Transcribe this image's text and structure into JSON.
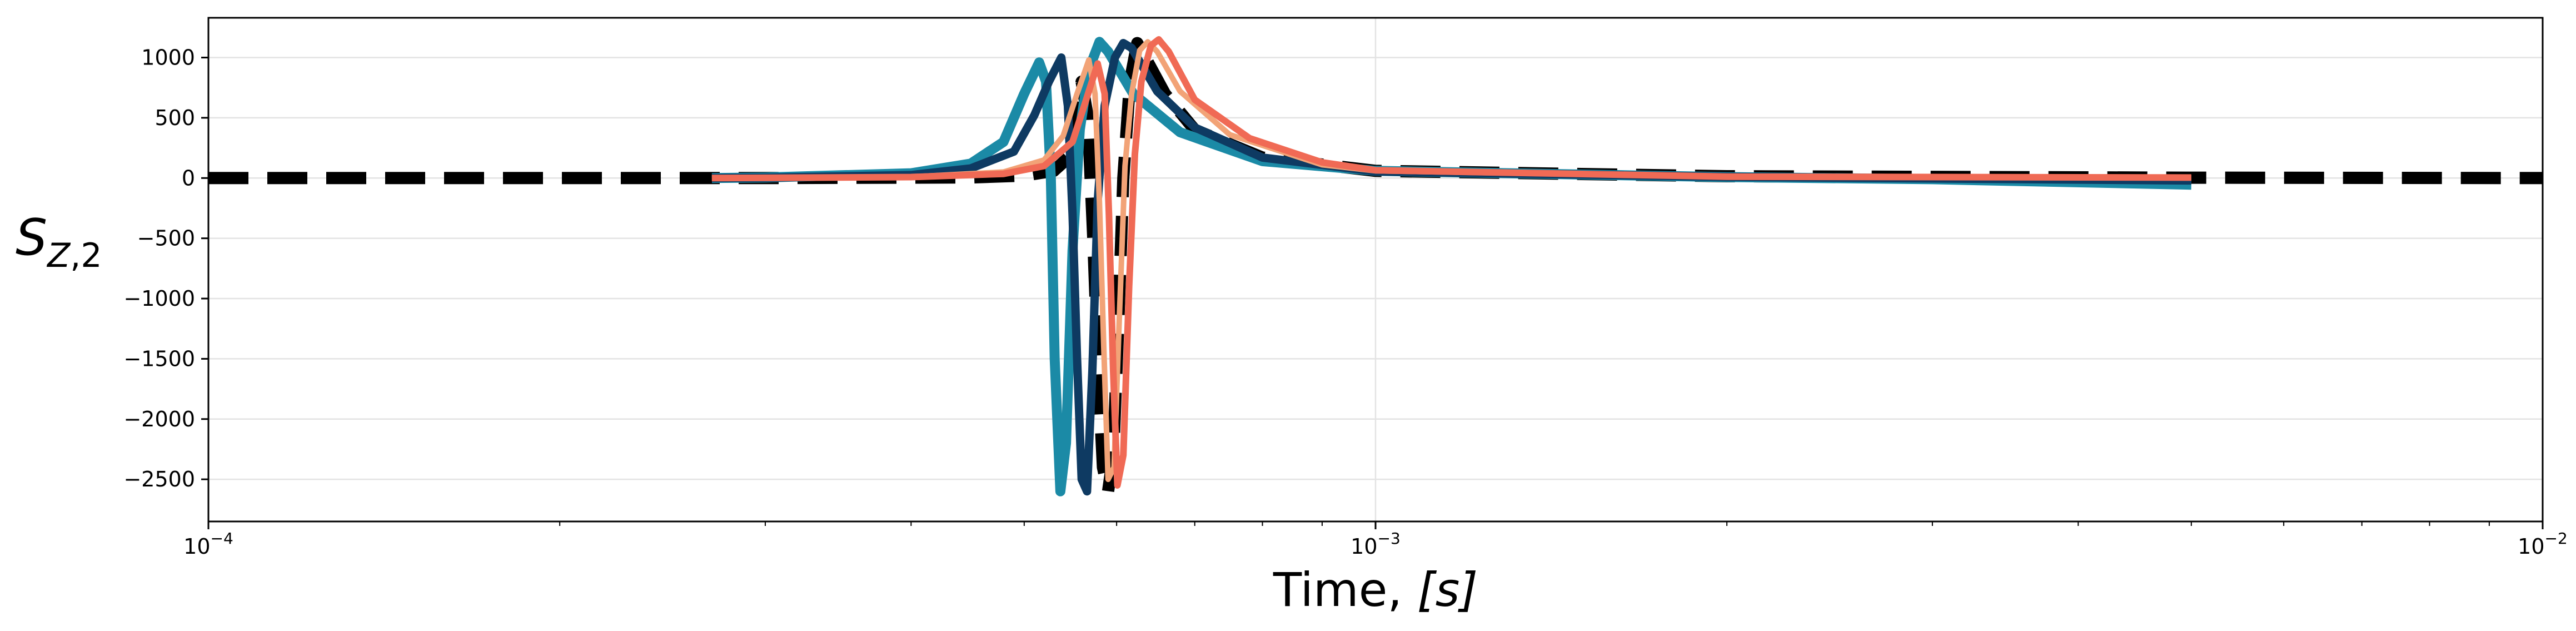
{
  "chart_data": {
    "type": "line",
    "title": "",
    "xlabel": "Time, ",
    "xlabel_unit": "[s]",
    "ylabel_main": "S",
    "ylabel_sub_letter": "Z",
    "ylabel_sub_num": ",2",
    "x_scale": "log",
    "xlim": [
      0.0001,
      0.01
    ],
    "ylim": [
      -2850,
      1330
    ],
    "x_ticks": [
      {
        "value": 0.0001,
        "base": "10",
        "exp": "−4"
      },
      {
        "value": 0.001,
        "base": "10",
        "exp": "−3"
      },
      {
        "value": 0.01,
        "base": "10",
        "exp": "−2"
      }
    ],
    "y_ticks": [
      {
        "value": 1000,
        "label": "1000"
      },
      {
        "value": 500,
        "label": "500"
      },
      {
        "value": 0,
        "label": "0"
      },
      {
        "value": -500,
        "label": "−500"
      },
      {
        "value": -1000,
        "label": "−1000"
      },
      {
        "value": -1500,
        "label": "−1500"
      },
      {
        "value": -2000,
        "label": "−2000"
      },
      {
        "value": -2500,
        "label": "−2500"
      }
    ],
    "grid": true,
    "legend": "none",
    "series": [
      {
        "color": "#000000",
        "style": "dashed",
        "points": [
          [
            0.0001,
            0
          ],
          [
            0.0003,
            0
          ],
          [
            0.00045,
            5
          ],
          [
            0.0005,
            20
          ],
          [
            0.00053,
            60
          ],
          [
            0.00055,
            200
          ],
          [
            0.000555,
            500
          ],
          [
            0.00056,
            800
          ],
          [
            0.000567,
            500
          ],
          [
            0.000573,
            -500
          ],
          [
            0.000578,
            -1500
          ],
          [
            0.000584,
            -2400
          ],
          [
            0.00059,
            -2600
          ],
          [
            0.000596,
            -2300
          ],
          [
            0.000602,
            -1200
          ],
          [
            0.000608,
            0
          ],
          [
            0.000616,
            800
          ],
          [
            0.000625,
            1120
          ],
          [
            0.000635,
            1000
          ],
          [
            0.00066,
            700
          ],
          [
            0.0007,
            400
          ],
          [
            0.0008,
            170
          ],
          [
            0.001,
            60
          ],
          [
            0.002,
            15
          ],
          [
            0.005,
            3
          ],
          [
            0.01,
            0
          ]
        ]
      },
      {
        "color": "#1b8aa6",
        "style": "solid",
        "points": [
          [
            0.00027,
            0
          ],
          [
            0.0003,
            5
          ],
          [
            0.0004,
            40
          ],
          [
            0.00045,
            120
          ],
          [
            0.00048,
            300
          ],
          [
            0.0005,
            700
          ],
          [
            0.000515,
            960
          ],
          [
            0.000522,
            800
          ],
          [
            0.000527,
            0
          ],
          [
            0.000531,
            -1500
          ],
          [
            0.000537,
            -2600
          ],
          [
            0.000543,
            -2200
          ],
          [
            0.00055,
            -600
          ],
          [
            0.000558,
            400
          ],
          [
            0.000568,
            900
          ],
          [
            0.00058,
            1130
          ],
          [
            0.00059,
            1050
          ],
          [
            0.00062,
            700
          ],
          [
            0.00068,
            380
          ],
          [
            0.0008,
            140
          ],
          [
            0.001,
            60
          ],
          [
            0.002,
            8
          ],
          [
            0.003,
            -10
          ],
          [
            0.005,
            -55
          ]
        ]
      },
      {
        "color": "#0e3a62",
        "style": "solid",
        "points": [
          [
            0.00027,
            0
          ],
          [
            0.0003,
            3
          ],
          [
            0.0004,
            25
          ],
          [
            0.00045,
            80
          ],
          [
            0.00049,
            220
          ],
          [
            0.00051,
            520
          ],
          [
            0.000525,
            800
          ],
          [
            0.000538,
            1000
          ],
          [
            0.000545,
            600
          ],
          [
            0.00055,
            -300
          ],
          [
            0.000555,
            -1500
          ],
          [
            0.00056,
            -2500
          ],
          [
            0.000566,
            -2600
          ],
          [
            0.000572,
            -1600
          ],
          [
            0.000578,
            -200
          ],
          [
            0.000586,
            600
          ],
          [
            0.000598,
            1000
          ],
          [
            0.000608,
            1120
          ],
          [
            0.000618,
            1080
          ],
          [
            0.00065,
            720
          ],
          [
            0.0007,
            420
          ],
          [
            0.0008,
            170
          ],
          [
            0.001,
            55
          ],
          [
            0.002,
            10
          ],
          [
            0.005,
            -20
          ]
        ]
      },
      {
        "color": "#f2a377",
        "style": "solid",
        "points": [
          [
            0.00027,
            0
          ],
          [
            0.0004,
            10
          ],
          [
            0.00048,
            50
          ],
          [
            0.00052,
            150
          ],
          [
            0.00054,
            350
          ],
          [
            0.000555,
            700
          ],
          [
            0.000568,
            980
          ],
          [
            0.000575,
            700
          ],
          [
            0.00058,
            -200
          ],
          [
            0.000585,
            -1400
          ],
          [
            0.00059,
            -2500
          ],
          [
            0.000597,
            -2400
          ],
          [
            0.000603,
            -1200
          ],
          [
            0.00061,
            100
          ],
          [
            0.000618,
            700
          ],
          [
            0.000628,
            1060
          ],
          [
            0.000638,
            1130
          ],
          [
            0.00065,
            1050
          ],
          [
            0.00068,
            720
          ],
          [
            0.00075,
            360
          ],
          [
            0.0009,
            110
          ],
          [
            0.001,
            60
          ],
          [
            0.002,
            12
          ],
          [
            0.005,
            5
          ]
        ]
      },
      {
        "color": "#f06a55",
        "style": "solid",
        "points": [
          [
            0.00027,
            0
          ],
          [
            0.0004,
            8
          ],
          [
            0.00048,
            35
          ],
          [
            0.00052,
            100
          ],
          [
            0.00055,
            300
          ],
          [
            0.000565,
            650
          ],
          [
            0.000578,
            950
          ],
          [
            0.000586,
            700
          ],
          [
            0.000591,
            -300
          ],
          [
            0.000596,
            -1600
          ],
          [
            0.000601,
            -2550
          ],
          [
            0.000608,
            -2300
          ],
          [
            0.000615,
            -900
          ],
          [
            0.000622,
            200
          ],
          [
            0.00063,
            800
          ],
          [
            0.000642,
            1100
          ],
          [
            0.000652,
            1150
          ],
          [
            0.000665,
            1050
          ],
          [
            0.0007,
            650
          ],
          [
            0.00078,
            330
          ],
          [
            0.0009,
            130
          ],
          [
            0.001,
            65
          ],
          [
            0.002,
            12
          ],
          [
            0.005,
            4
          ]
        ]
      }
    ]
  }
}
